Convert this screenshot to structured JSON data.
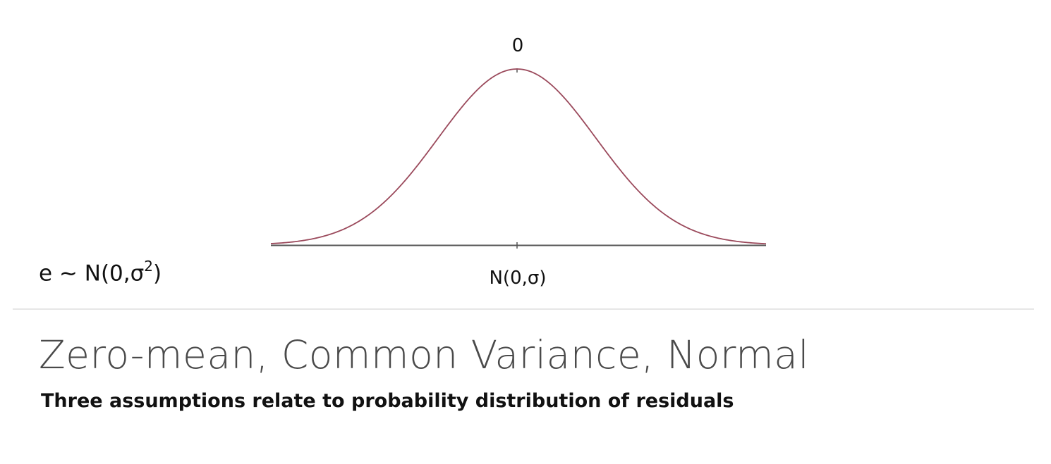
{
  "diagram": {
    "peak_label": "0",
    "distribution_label": "N(0,σ)",
    "formula_text": "e ~ N(0,σ",
    "formula_superscript": "2",
    "formula_close": ")",
    "curve_color": "#9b4a5c",
    "axis_color": "#555555"
  },
  "slide": {
    "title": "Zero-mean, Common Variance, Normal",
    "subtitle": "Three assumptions relate to probability distribution of residuals"
  }
}
